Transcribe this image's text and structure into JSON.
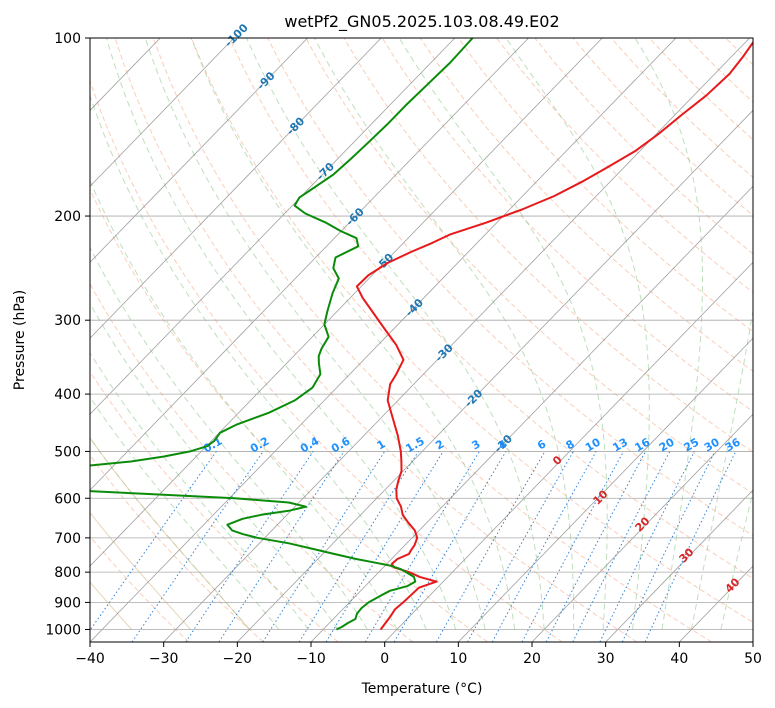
{
  "chart_data": {
    "type": "line",
    "subtype": "skew-t log-p sounding",
    "title": "wetPf2_GN05.2025.103.08.49.E02",
    "xlabel": "Temperature (°C)",
    "ylabel": "Pressure (hPa)",
    "xlim": [
      -40,
      50
    ],
    "ylim": [
      1050,
      100
    ],
    "y_scale": "log",
    "grid": true,
    "x_ticks": [
      -40,
      -30,
      -20,
      -10,
      0,
      10,
      20,
      30,
      40,
      50
    ],
    "y_ticks": [
      1000,
      900,
      800,
      700,
      600,
      500,
      400,
      300,
      200,
      100
    ],
    "isotherm_labels": [
      "-100",
      "-90",
      "-80",
      "-70",
      "-60",
      "-50",
      "-40",
      "-30",
      "-20",
      "-10",
      "0",
      "10",
      "20",
      "30",
      "40"
    ],
    "mixing_ratio_labels": [
      "0.1",
      "0.2",
      "0.4",
      "0.6",
      "1",
      "1.5",
      "2",
      "3",
      "4",
      "6",
      "8",
      "10",
      "13",
      "16",
      "20",
      "25",
      "30",
      "36"
    ],
    "moist_adiabat_labels": [
      "0",
      "10",
      "20",
      "30",
      "40"
    ],
    "series": [
      {
        "name": "",
        "color": "#e8191a",
        "pressure": [
          1000,
          975,
          950,
          925,
          900,
          875,
          850,
          830,
          825,
          815,
          800,
          785,
          775,
          760,
          745,
          735,
          720,
          700,
          680,
          660,
          640,
          620,
          600,
          580,
          560,
          540,
          520,
          500,
          470,
          440,
          410,
          385,
          370,
          350,
          330,
          310,
          290,
          275,
          263,
          252,
          240,
          230,
          222,
          215,
          205,
          195,
          185,
          175,
          165,
          155,
          145,
          135,
          125,
          115,
          108,
          100
        ],
        "temperature": [
          -2.2,
          -2.4,
          -2.6,
          -2.9,
          -2.7,
          -2.6,
          -2.5,
          -0.9,
          -1.9,
          -3.8,
          -5.9,
          -8.6,
          -9.3,
          -9.2,
          -8.3,
          -8.5,
          -8.7,
          -9.3,
          -10.6,
          -12.5,
          -14.3,
          -15.6,
          -17.3,
          -18.5,
          -19.4,
          -20.2,
          -21.5,
          -22.9,
          -25.4,
          -28.3,
          -31.4,
          -33.2,
          -33.7,
          -34.6,
          -37.6,
          -41.3,
          -45.2,
          -48.3,
          -50.6,
          -50.5,
          -49.5,
          -47.8,
          -46.1,
          -44.8,
          -41.4,
          -38.3,
          -35.7,
          -33.8,
          -32.2,
          -30.6,
          -29.7,
          -29.1,
          -28.3,
          -28.0,
          -28.4,
          -29.1
        ]
      },
      {
        "name": "",
        "color": "#0a8c0a",
        "pressure": [
          1000,
          990,
          975,
          960,
          940,
          920,
          900,
          875,
          860,
          845,
          830,
          815,
          800,
          790,
          780,
          770,
          760,
          745,
          730,
          715,
          700,
          690,
          680,
          665,
          650,
          640,
          630,
          620,
          610,
          600,
          590,
          580,
          570,
          560,
          550,
          540,
          530,
          520,
          510,
          500,
          490,
          480,
          465,
          450,
          430,
          410,
          390,
          370,
          355,
          345,
          335,
          320,
          305,
          290,
          270,
          255,
          245,
          235,
          225,
          218,
          212,
          205,
          198,
          192,
          186,
          180,
          170,
          160,
          150,
          140,
          130,
          120,
          110,
          100
        ],
        "temperature": [
          -8.2,
          -7.8,
          -7.5,
          -7.0,
          -7.5,
          -7.6,
          -7.4,
          -6.6,
          -6.0,
          -4.3,
          -3.8,
          -4.6,
          -6.3,
          -7.5,
          -9.3,
          -12.0,
          -14.8,
          -18.5,
          -22.2,
          -26.0,
          -31.0,
          -33.4,
          -35.4,
          -36.8,
          -35.5,
          -33.5,
          -30.3,
          -28.5,
          -31.4,
          -39.3,
          -51.9,
          -64.5,
          -73.1,
          -77.8,
          -76.9,
          -71.6,
          -64.4,
          -58.2,
          -54.4,
          -51.5,
          -49.9,
          -49.6,
          -49.9,
          -48.7,
          -45.9,
          -44.0,
          -43.3,
          -44.0,
          -45.6,
          -46.6,
          -47.2,
          -47.8,
          -50.0,
          -51.3,
          -53.0,
          -54.1,
          -56.2,
          -57.3,
          -55.7,
          -57.0,
          -60.1,
          -63.3,
          -67.2,
          -69.7,
          -70.1,
          -69.5,
          -68.5,
          -68.2,
          -68.0,
          -67.8,
          -67.8,
          -67.6,
          -67.4,
          -67.6
        ]
      }
    ]
  }
}
